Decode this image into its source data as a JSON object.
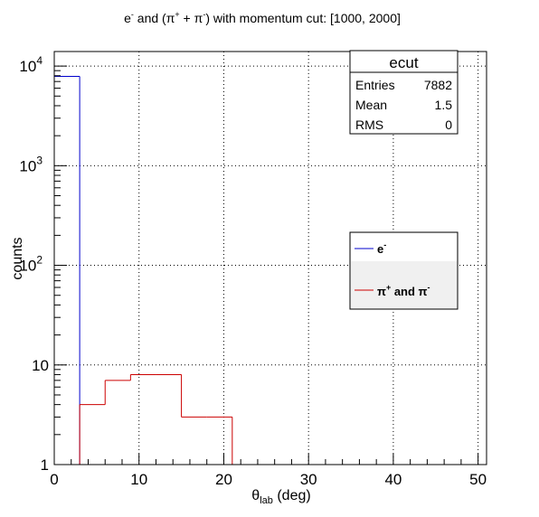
{
  "title_parts": {
    "e": "e",
    "e_sup": "-",
    "and1": " and (",
    "pi1": "π",
    "pi1_sup": "+",
    "plus": " + ",
    "pi2": "π",
    "pi2_sup": "-",
    "rest": ") with momentum cut: [1000, 2000]"
  },
  "stats_box": {
    "title": "ecut",
    "rows": [
      {
        "label": "Entries",
        "value": "7882"
      },
      {
        "label": "Mean",
        "value": "1.5"
      },
      {
        "label": "RMS",
        "value": "0"
      }
    ]
  },
  "legend": {
    "entries": [
      {
        "base": "e",
        "sup": "-",
        "rest": "",
        "color": "#0000cc"
      },
      {
        "base": "π",
        "sup": "+",
        "rest": " and π",
        "sup2": "-",
        "color": "#cc0000"
      }
    ]
  },
  "axes": {
    "xlabel_base": "θ",
    "xlabel_sub": "lab",
    "xlabel_unit": " (deg)",
    "ylabel": "counts"
  },
  "chart_data": {
    "type": "histogram",
    "x_ticks": [
      0,
      10,
      20,
      30,
      40,
      50
    ],
    "y_ticks": [
      {
        "value": 1,
        "base": "1",
        "sup": ""
      },
      {
        "value": 10,
        "base": "10",
        "sup": ""
      },
      {
        "value": 100,
        "base": "10",
        "sup": "2"
      },
      {
        "value": 1000,
        "base": "10",
        "sup": "3"
      },
      {
        "value": 10000,
        "base": "10",
        "sup": "4"
      }
    ],
    "xlim": [
      0,
      51
    ],
    "ylim": [
      1,
      14000
    ],
    "y_scale": "log",
    "grid": true,
    "series": [
      {
        "name": "e-",
        "color": "#0000cc",
        "bin_edges": [
          0,
          3
        ],
        "counts": [
          7882
        ]
      },
      {
        "name": "π+ and π-",
        "color": "#cc0000",
        "bin_edges": [
          0,
          3,
          6,
          9,
          12,
          15,
          18,
          21,
          24
        ],
        "counts": [
          0,
          4,
          7,
          8,
          8,
          3,
          3,
          0
        ]
      }
    ]
  }
}
